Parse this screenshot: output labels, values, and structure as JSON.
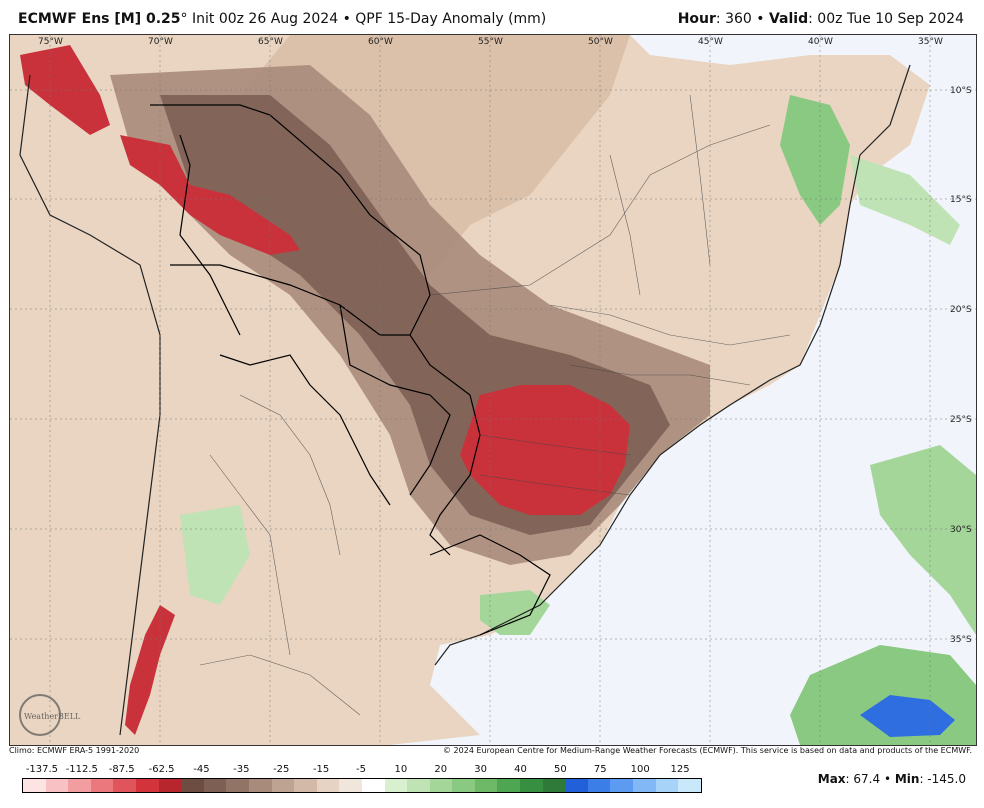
{
  "header": {
    "model": "ECMWF Ens [M] 0.25",
    "degree": "°",
    "init": "Init 00z 26 Aug 2024",
    "bullet": "•",
    "product": "QPF 15-Day Anomaly (mm)",
    "hour_label": "Hour",
    "hour_value": ": 360",
    "valid_label": "Valid",
    "valid_value": ": 00z Tue 10 Sep 2024"
  },
  "map": {
    "lon_labels": [
      "75°W",
      "70°W",
      "65°W",
      "60°W",
      "55°W",
      "50°W",
      "45°W",
      "40°W",
      "35°W"
    ],
    "lat_labels": [
      "10°S",
      "15°S",
      "20°S",
      "25°S",
      "30°S",
      "35°S"
    ],
    "logo_text": "WeatherBELL"
  },
  "footer": {
    "climo": "Climo: ECMWF ERA-5 1991-2020",
    "copyright": "© 2024 European Centre for Medium-Range Weather Forecasts (ECMWF). This service is based on data and products of the ECMWF.",
    "max_label": "Max",
    "max_value": ": 67.4",
    "min_label": "Min",
    "min_value": ": -145.0",
    "bullet": "•"
  },
  "colorbar": {
    "labels": [
      "-137.5",
      "-112.5",
      "-87.5",
      "-62.5",
      "-45",
      "-35",
      "-25",
      "-15",
      "-5",
      "10",
      "20",
      "30",
      "40",
      "50",
      "75",
      "100",
      "125"
    ],
    "colors": [
      "#fde3e4",
      "#f8c2c4",
      "#f29ea1",
      "#ea787d",
      "#e0545b",
      "#d3343c",
      "#b7262d",
      "#6d4c41",
      "#7d5f54",
      "#917466",
      "#a88b7b",
      "#bea392",
      "#d3baa8",
      "#e6d3c4",
      "#f1e6dc",
      "#ffffff",
      "#d8f0d0",
      "#bfe3b5",
      "#a4d69a",
      "#89c981",
      "#6db968",
      "#4fa652",
      "#378f42",
      "#2f7a38",
      "#2160d9",
      "#3b7ee8",
      "#5d9bf2",
      "#82b8f6",
      "#a8d3f9",
      "#c9e9fb"
    ]
  }
}
